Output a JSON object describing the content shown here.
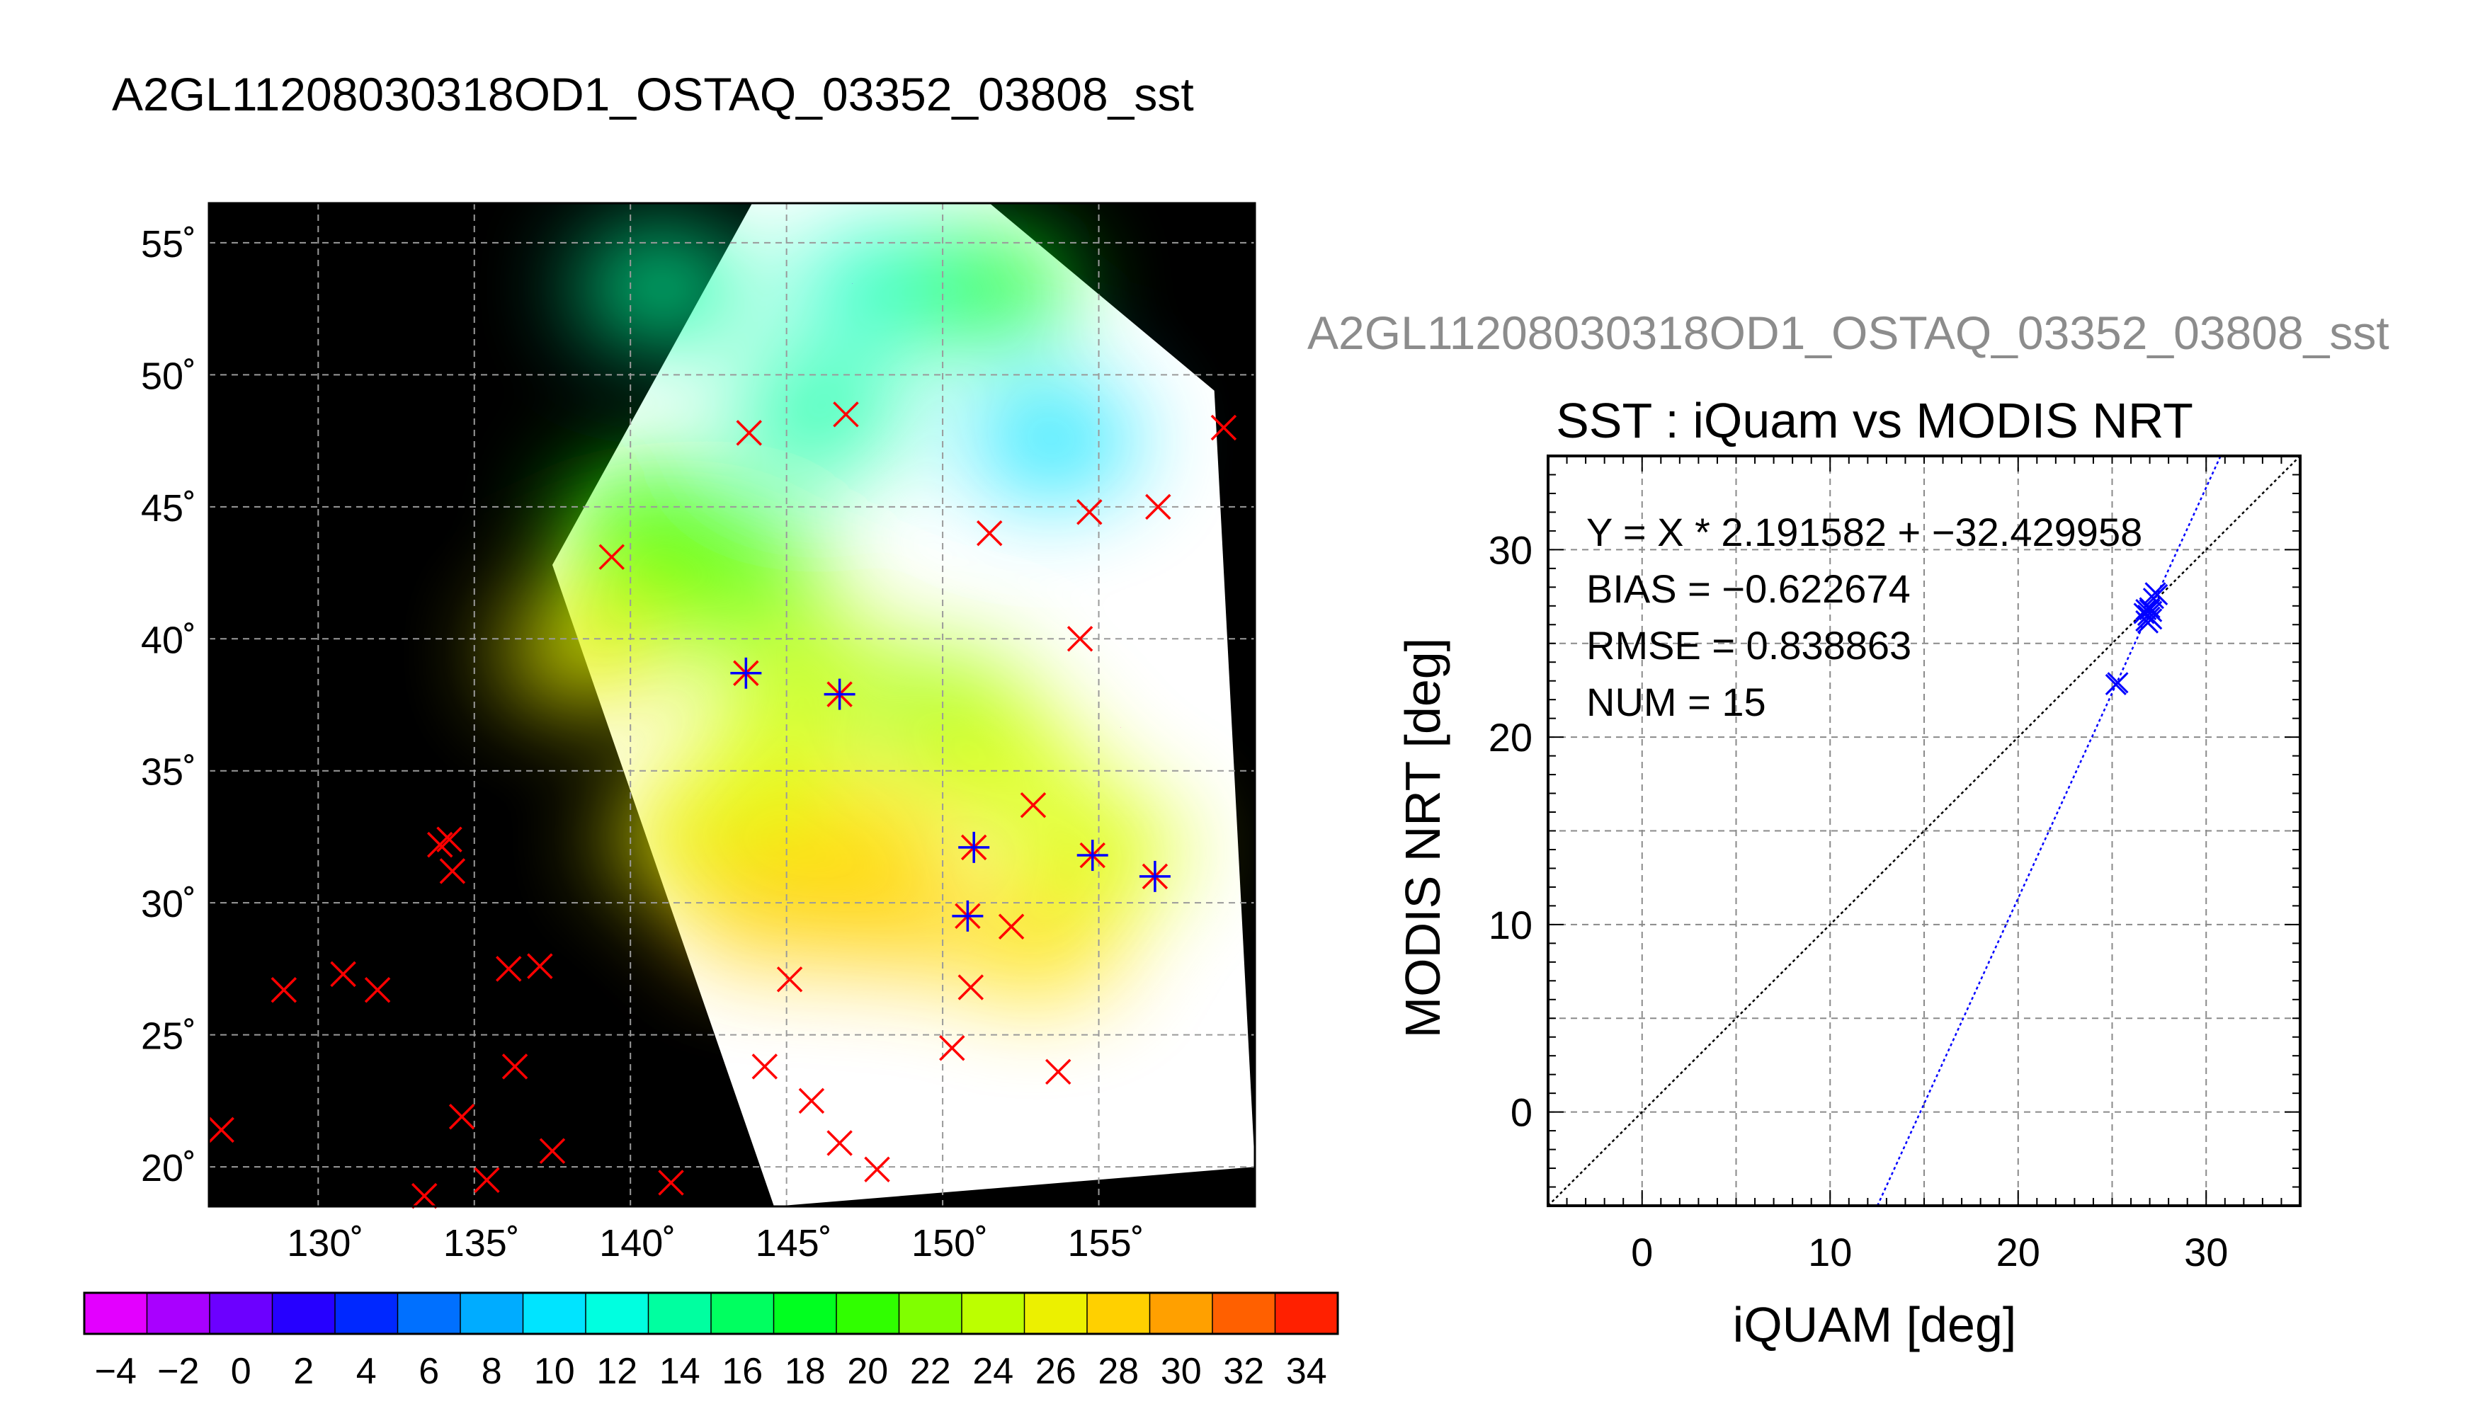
{
  "header": {
    "main_title": "A2GL11208030318OD1_OSTAQ_03352_03808_sst",
    "scatter_subtitle": "A2GL11208030318OD1_OSTAQ_03352_03808_sst"
  },
  "colors": {
    "map_background": "#000000",
    "swath_cloud": "#ffffff",
    "grid": "#9a9a9a",
    "iquam_point": "#ff0000",
    "matchup_point": "#0000ff",
    "fit_line": "#0000ff",
    "identity_line": "#000000",
    "subtitle": "#8c8c8c"
  },
  "chart_data": [
    {
      "type": "map",
      "title": "",
      "lon_range": [
        126.5,
        160
      ],
      "lat_range": [
        18.5,
        56.5
      ],
      "lon_ticks": [
        130,
        135,
        140,
        145,
        150,
        155
      ],
      "lat_ticks": [
        20,
        25,
        30,
        35,
        40,
        45,
        50,
        55
      ],
      "lon_tick_labels": [
        "130˚",
        "135˚",
        "140˚",
        "145˚",
        "150˚",
        "155˚"
      ],
      "lat_tick_labels": [
        "20˚",
        "25˚",
        "30˚",
        "35˚",
        "40˚",
        "45˚",
        "50˚",
        "55˚"
      ],
      "grid": true,
      "swath_corners": [
        [
          143.9,
          56.5
        ],
        [
          151.5,
          56.5
        ],
        [
          158.7,
          49.4
        ],
        [
          160,
          20.0
        ],
        [
          144.6,
          18.5
        ],
        [
          137.5,
          42.8
        ]
      ],
      "sst_samples": [
        {
          "lon": 141.0,
          "lat": 53.3,
          "sst": 14
        },
        {
          "lon": 148.0,
          "lat": 53.3,
          "sst": 13
        },
        {
          "lon": 151.5,
          "lat": 53.3,
          "sst": 18
        },
        {
          "lon": 146.0,
          "lat": 48.5,
          "sst": 14
        },
        {
          "lon": 153.5,
          "lat": 47.5,
          "sst": 10
        },
        {
          "lon": 140.5,
          "lat": 44.5,
          "sst": 19
        },
        {
          "lon": 143.5,
          "lat": 42.8,
          "sst": 20
        },
        {
          "lon": 140.5,
          "lat": 41.5,
          "sst": 22
        },
        {
          "lon": 138.5,
          "lat": 39.5,
          "sst": 26
        },
        {
          "lon": 145.5,
          "lat": 39.0,
          "sst": 24
        },
        {
          "lon": 150.0,
          "lat": 37.5,
          "sst": 23
        },
        {
          "lon": 144.5,
          "lat": 35.0,
          "sst": 25
        },
        {
          "lon": 152.0,
          "lat": 35.0,
          "sst": 25
        },
        {
          "lon": 142.0,
          "lat": 32.5,
          "sst": 26
        },
        {
          "lon": 147.5,
          "lat": 32.5,
          "sst": 27
        },
        {
          "lon": 155.0,
          "lat": 32.0,
          "sst": 25
        },
        {
          "lon": 144.5,
          "lat": 29.8,
          "sst": 28
        },
        {
          "lon": 148.5,
          "lat": 29.5,
          "sst": 28
        },
        {
          "lon": 153.0,
          "lat": 28.5,
          "sst": 27
        }
      ],
      "iquam_points": [
        {
          "lon": 159.0,
          "lat": 48.0
        },
        {
          "lon": 143.8,
          "lat": 47.8
        },
        {
          "lon": 146.9,
          "lat": 48.5
        },
        {
          "lon": 151.5,
          "lat": 44.0
        },
        {
          "lon": 154.7,
          "lat": 44.8
        },
        {
          "lon": 156.9,
          "lat": 45.0
        },
        {
          "lon": 139.4,
          "lat": 43.1
        },
        {
          "lon": 154.4,
          "lat": 40.0
        },
        {
          "lon": 152.9,
          "lat": 33.7
        },
        {
          "lon": 133.9,
          "lat": 32.2
        },
        {
          "lon": 134.2,
          "lat": 32.4
        },
        {
          "lon": 134.3,
          "lat": 31.2
        },
        {
          "lon": 152.2,
          "lat": 29.1
        },
        {
          "lon": 128.9,
          "lat": 26.7
        },
        {
          "lon": 130.8,
          "lat": 27.3
        },
        {
          "lon": 131.9,
          "lat": 26.7
        },
        {
          "lon": 136.1,
          "lat": 27.5
        },
        {
          "lon": 137.1,
          "lat": 27.6
        },
        {
          "lon": 145.1,
          "lat": 27.1
        },
        {
          "lon": 150.9,
          "lat": 26.8
        },
        {
          "lon": 150.3,
          "lat": 24.5
        },
        {
          "lon": 136.3,
          "lat": 23.8
        },
        {
          "lon": 144.3,
          "lat": 23.8
        },
        {
          "lon": 153.7,
          "lat": 23.6
        },
        {
          "lon": 145.8,
          "lat": 22.5
        },
        {
          "lon": 134.6,
          "lat": 21.9
        },
        {
          "lon": 126.9,
          "lat": 21.4
        },
        {
          "lon": 137.5,
          "lat": 20.6
        },
        {
          "lon": 146.7,
          "lat": 20.9
        },
        {
          "lon": 147.9,
          "lat": 19.9
        },
        {
          "lon": 135.4,
          "lat": 19.5
        },
        {
          "lon": 133.4,
          "lat": 18.9
        },
        {
          "lon": 141.3,
          "lat": 19.4
        }
      ],
      "matchup_points": [
        {
          "lon": 143.7,
          "lat": 38.7
        },
        {
          "lon": 146.7,
          "lat": 37.9
        },
        {
          "lon": 151.0,
          "lat": 32.1
        },
        {
          "lon": 154.8,
          "lat": 31.8
        },
        {
          "lon": 156.8,
          "lat": 31.0
        },
        {
          "lon": 150.8,
          "lat": 29.5
        }
      ]
    },
    {
      "type": "colorbar",
      "range": [
        -5,
        35
      ],
      "step": 2,
      "tick_labels": [
        "−4",
        "−2",
        "0",
        "2",
        "4",
        "6",
        "8",
        "10",
        "12",
        "14",
        "16",
        "18",
        "20",
        "22",
        "24",
        "26",
        "28",
        "30",
        "32",
        "34"
      ],
      "stops": [
        {
          "value": -5,
          "color": "#ff00ff"
        },
        {
          "value": -3,
          "color": "#c600ff"
        },
        {
          "value": -1,
          "color": "#8c00ff"
        },
        {
          "value": 1,
          "color": "#4b00ff"
        },
        {
          "value": 3,
          "color": "#0000ff"
        },
        {
          "value": 5,
          "color": "#0050ff"
        },
        {
          "value": 7,
          "color": "#0090ff"
        },
        {
          "value": 9,
          "color": "#00c8ff"
        },
        {
          "value": 11,
          "color": "#00ffff"
        },
        {
          "value": 13,
          "color": "#00ffc0"
        },
        {
          "value": 15,
          "color": "#00ff80"
        },
        {
          "value": 17,
          "color": "#00ff40"
        },
        {
          "value": 19,
          "color": "#00ff00"
        },
        {
          "value": 21,
          "color": "#60ff00"
        },
        {
          "value": 23,
          "color": "#a0ff00"
        },
        {
          "value": 25,
          "color": "#d8ff00"
        },
        {
          "value": 27,
          "color": "#ffe000"
        },
        {
          "value": 29,
          "color": "#ffc000"
        },
        {
          "value": 31,
          "color": "#ff8000"
        },
        {
          "value": 33,
          "color": "#ff4000"
        },
        {
          "value": 35,
          "color": "#ff0000"
        }
      ]
    },
    {
      "type": "scatter",
      "title": "SST : iQuam vs MODIS NRT",
      "xlabel": "iQUAM [deg]",
      "ylabel": "MODIS NRT [deg]",
      "xlim": [
        -5,
        35
      ],
      "ylim": [
        -5,
        35
      ],
      "x_ticks": [
        0,
        10,
        20,
        30
      ],
      "y_ticks": [
        0,
        10,
        20,
        30
      ],
      "grid": true,
      "stats": {
        "fit_equation": "Y = X * 2.191582 + −32.429958",
        "bias": "BIAS = −0.622674",
        "rmse": "RMSE = 0.838863",
        "num": "NUM = 15"
      },
      "fit": {
        "slope": 2.191582,
        "intercept": -32.429958
      },
      "points": [
        {
          "x": 25.2,
          "y": 22.8
        },
        {
          "x": 25.3,
          "y": 22.9
        },
        {
          "x": 26.8,
          "y": 26.2
        },
        {
          "x": 26.9,
          "y": 26.5
        },
        {
          "x": 27.0,
          "y": 26.8
        },
        {
          "x": 26.8,
          "y": 26.8
        },
        {
          "x": 27.1,
          "y": 26.3
        },
        {
          "x": 27.0,
          "y": 26.4
        },
        {
          "x": 27.2,
          "y": 27.4
        },
        {
          "x": 27.4,
          "y": 27.6
        },
        {
          "x": 27.3,
          "y": 27.7
        },
        {
          "x": 26.7,
          "y": 26.6
        },
        {
          "x": 27.0,
          "y": 26.9
        },
        {
          "x": 26.9,
          "y": 26.1
        },
        {
          "x": 27.1,
          "y": 26.7
        }
      ]
    }
  ]
}
